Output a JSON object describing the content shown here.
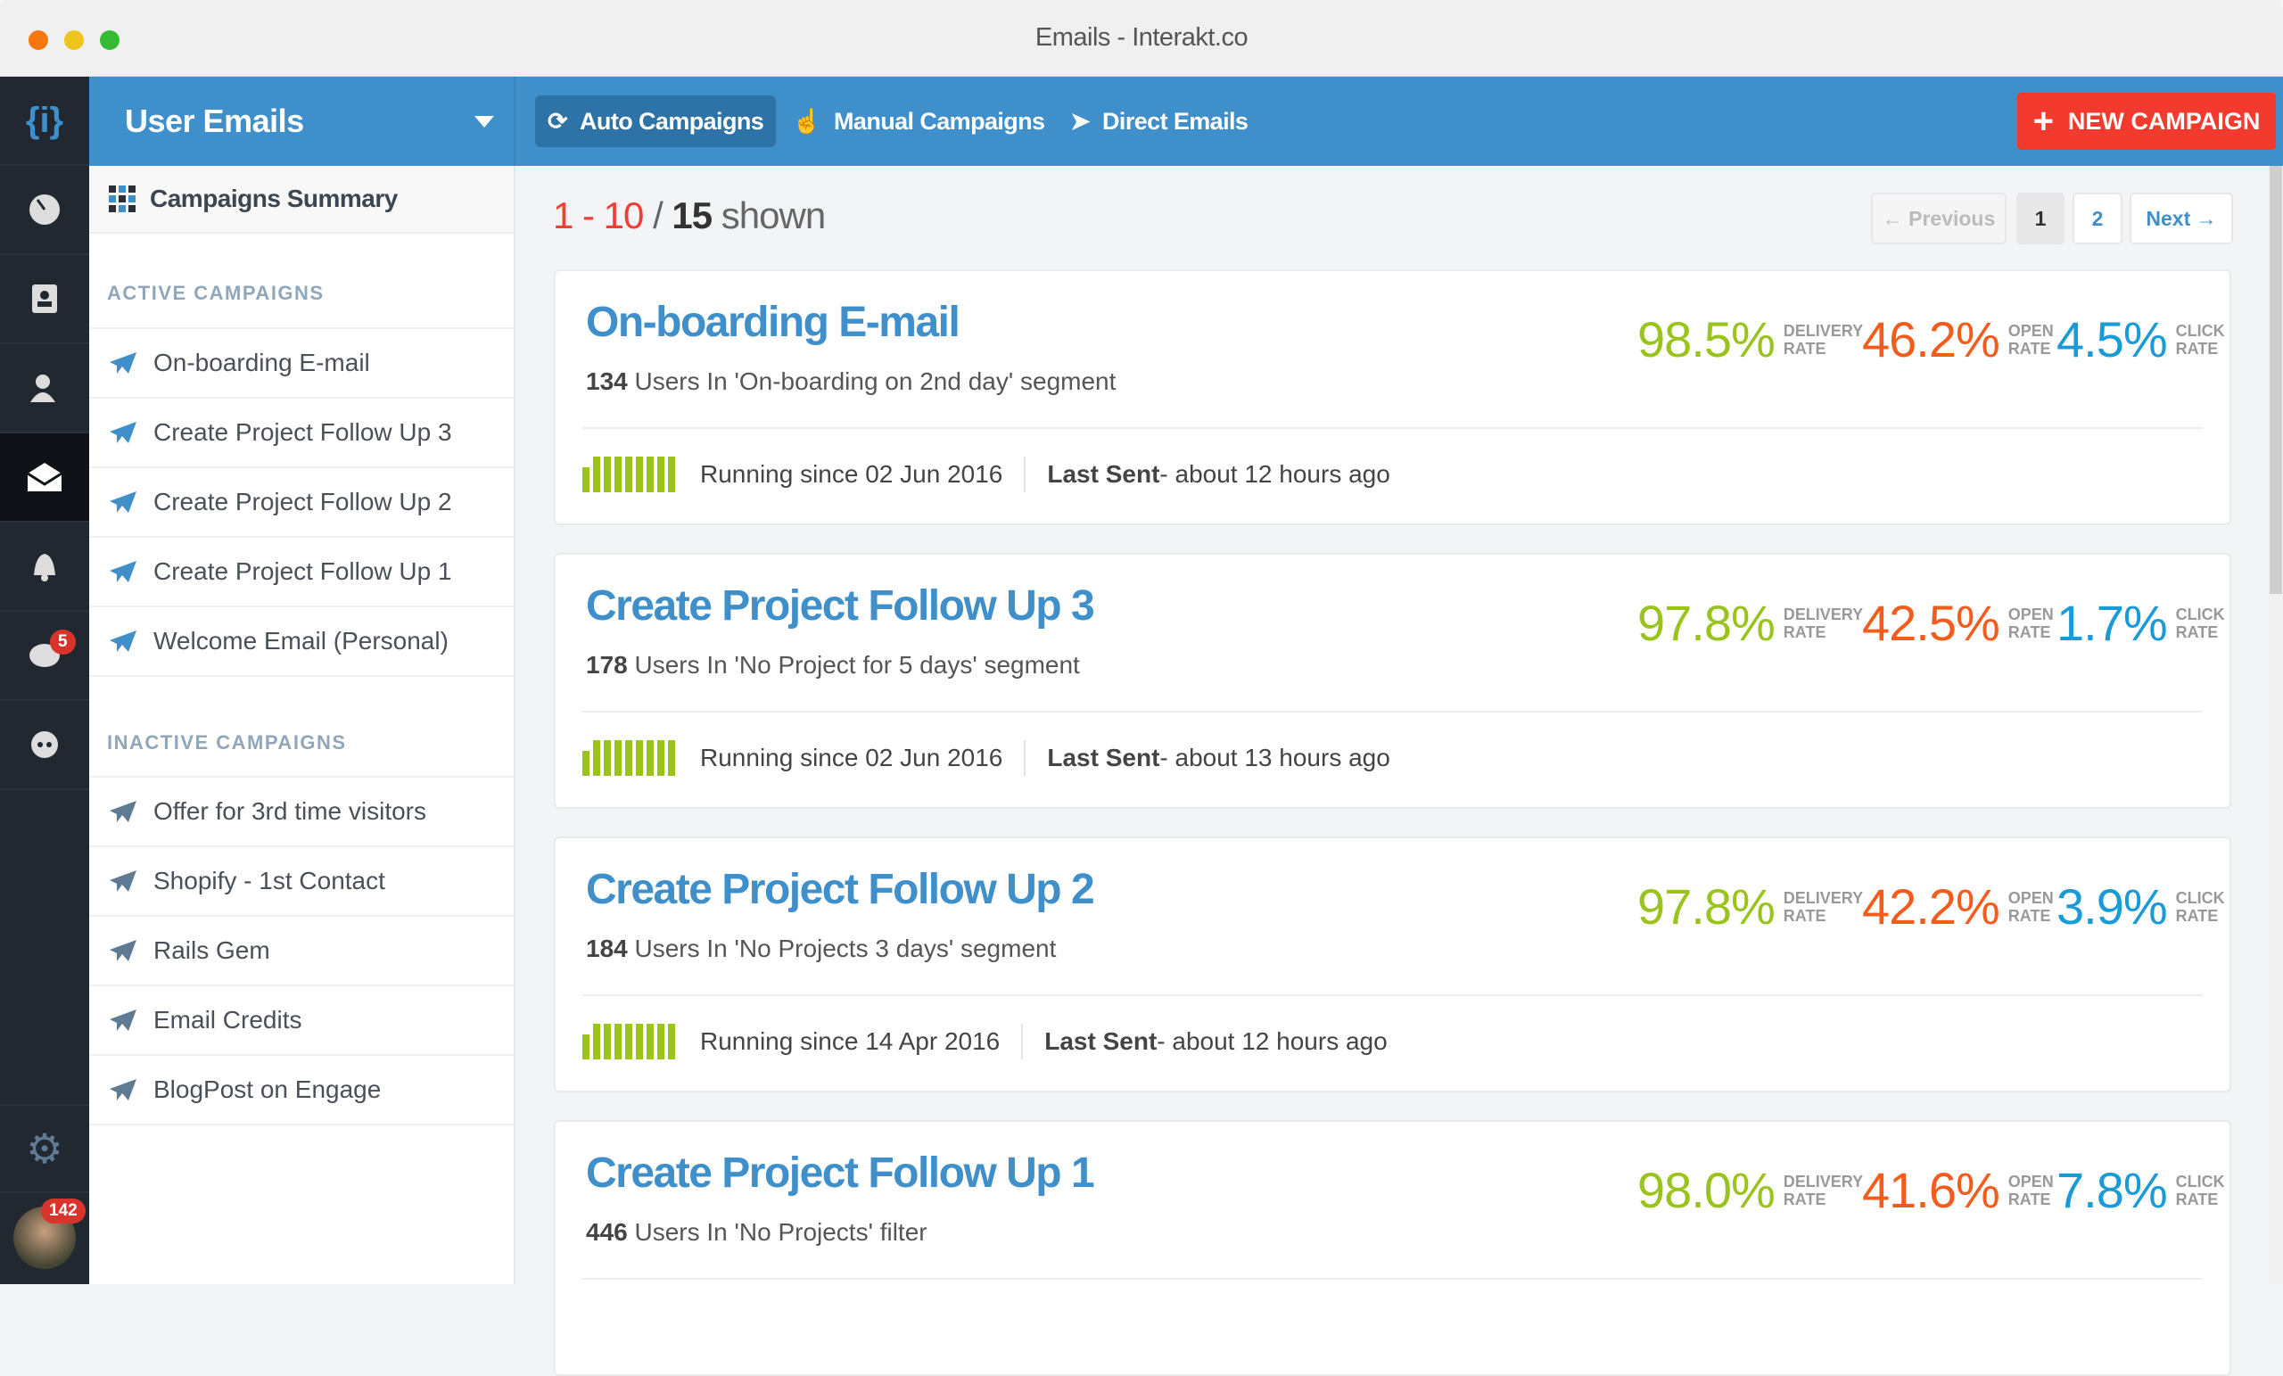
{
  "window": {
    "title": "Emails - Interakt.co"
  },
  "rail": {
    "logo": "{i}",
    "items": [
      "dashboard-icon",
      "contacts-icon",
      "users-icon",
      "email-icon",
      "notifications-icon",
      "chat-icon",
      "support-icon"
    ],
    "chat_badge": "5",
    "avatar_badge": "142"
  },
  "header": {
    "app_name": "User Emails",
    "tabs": [
      {
        "label": "Auto Campaigns",
        "icon": "refresh-icon",
        "active": true
      },
      {
        "label": "Manual Campaigns",
        "icon": "hand-pointer-icon"
      },
      {
        "label": "Direct Emails",
        "icon": "send-icon"
      }
    ],
    "new_campaign": "NEW CAMPAIGN"
  },
  "sidebar": {
    "summary": "Campaigns Summary",
    "active_header": "ACTIVE CAMPAIGNS",
    "active": [
      "On-boarding E-mail",
      "Create Project Follow Up 3",
      "Create Project Follow Up 2",
      "Create Project Follow Up 1",
      "Welcome Email (Personal)"
    ],
    "inactive_header": "INACTIVE CAMPAIGNS",
    "inactive": [
      "Offer for 3rd time visitors",
      "Shopify - 1st Contact",
      "Rails Gem",
      "Email Credits",
      "BlogPost on Engage"
    ]
  },
  "listing": {
    "range": "1 - 10",
    "sep": " / ",
    "total": "15",
    "shown": " shown"
  },
  "pagination": {
    "previous": "← Previous",
    "pages": [
      "1",
      "2"
    ],
    "current": "1",
    "next": "Next →"
  },
  "labels": {
    "delivery": [
      "DELIVERY",
      "RATE"
    ],
    "open": [
      "OPEN",
      "RATE"
    ],
    "click": [
      "CLICK",
      "RATE"
    ],
    "last_sent": "Last Sent"
  },
  "colors": {
    "delivery": "#9ac31c",
    "open": "#f25c1c",
    "click": "#1a9ad6",
    "brand": "#3f8fcb",
    "danger": "#f23a2f"
  },
  "campaigns": [
    {
      "name": "On-boarding E-mail",
      "users": "134",
      "segment": " Users In 'On-boarding on 2nd day' segment",
      "running": "Running since 02 Jun 2016",
      "last_sent": " - about 12 hours ago",
      "delivery": "98.5%",
      "open": "46.2%",
      "click": "4.5%"
    },
    {
      "name": "Create Project Follow Up 3",
      "users": "178",
      "segment": " Users In 'No Project for 5 days' segment",
      "running": "Running since 02 Jun 2016",
      "last_sent": " - about 13 hours ago",
      "delivery": "97.8%",
      "open": "42.5%",
      "click": "1.7%"
    },
    {
      "name": "Create Project Follow Up 2",
      "users": "184",
      "segment": " Users In 'No Projects 3 days' segment",
      "running": "Running since 14 Apr 2016",
      "last_sent": " - about 12 hours ago",
      "delivery": "97.8%",
      "open": "42.2%",
      "click": "3.9%"
    },
    {
      "name": "Create Project Follow Up 1",
      "users": "446",
      "segment": " Users In 'No Projects' filter",
      "delivery": "98.0%",
      "open": "41.6%",
      "click": "7.8%"
    }
  ]
}
